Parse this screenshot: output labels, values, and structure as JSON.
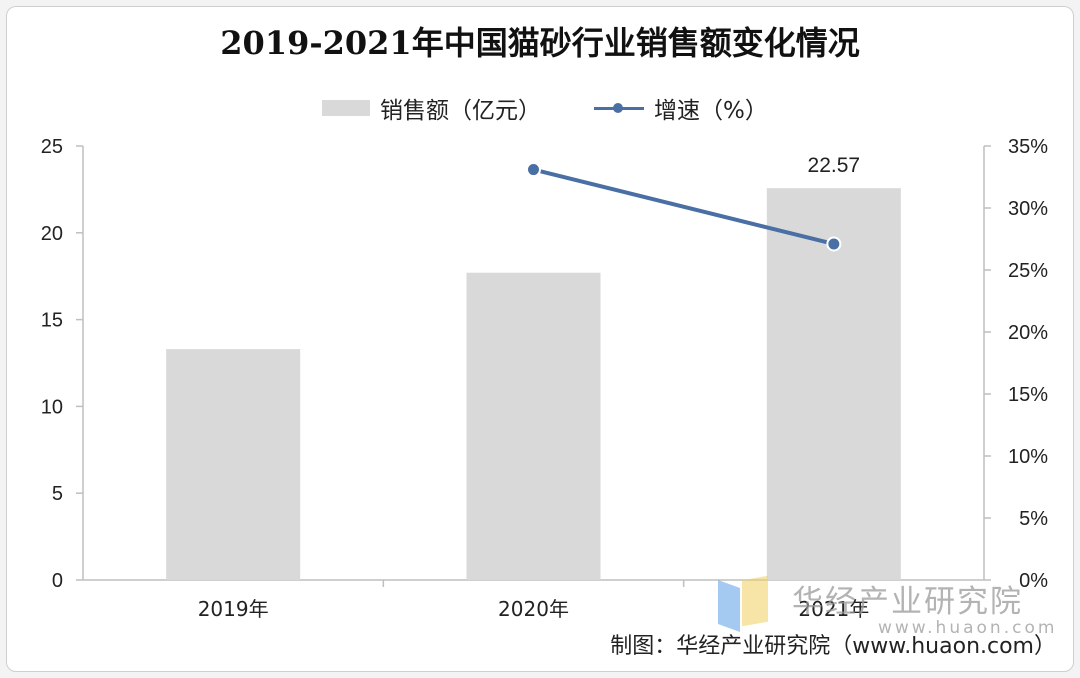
{
  "source_text": "制图：华经产业研究院（www.huaon.com）",
  "watermark": {
    "name": "华经产业研究院",
    "url": "www.huaon.com"
  },
  "colors": {
    "bar": "#d9d9d9",
    "line": "#4a6fa5",
    "axis": "#bfbfbf"
  },
  "chart_data": {
    "type": "bar",
    "title": "2019-2021年中国猫砂行业销售额变化情况",
    "categories": [
      "2019年",
      "2020年",
      "2021年"
    ],
    "series": [
      {
        "name": "销售额（亿元）",
        "type": "bar",
        "axis": "left",
        "values": [
          13.3,
          17.7,
          22.57
        ],
        "data_labels": [
          null,
          null,
          "22.57"
        ]
      },
      {
        "name": "增速（%）",
        "type": "line",
        "axis": "right",
        "values": [
          null,
          33.1,
          27.1
        ]
      }
    ],
    "y_left": {
      "min": 0,
      "max": 25,
      "ticks": [
        "0",
        "5",
        "10",
        "15",
        "20",
        "25"
      ]
    },
    "y_right": {
      "min": 0,
      "max": 35,
      "ticks": [
        "0%",
        "5%",
        "10%",
        "15%",
        "20%",
        "25%",
        "30%",
        "35%"
      ]
    },
    "legend_position": "top-center",
    "grid": false
  }
}
